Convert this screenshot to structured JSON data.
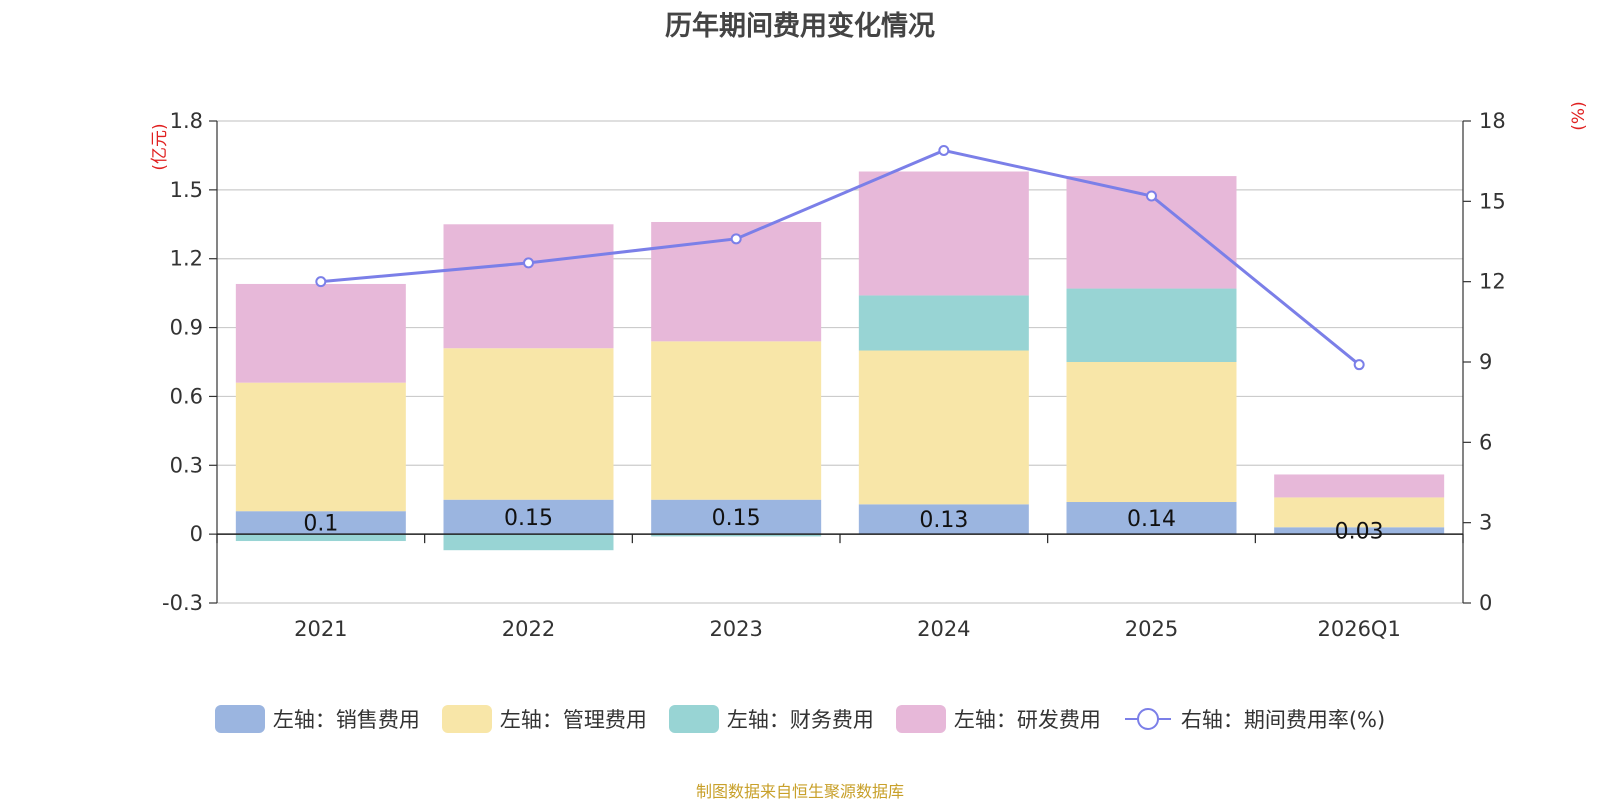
{
  "chart_data": {
    "type": "bar",
    "title": "历年期间费用变化情况",
    "categories": [
      "2021",
      "2022",
      "2023",
      "2024",
      "2025",
      "2026Q1"
    ],
    "stacked": true,
    "left_axis": {
      "unit": "(亿元)",
      "ylim": [
        -0.3,
        1.8
      ],
      "ticks": [
        "-0.3",
        "0",
        "0.3",
        "0.6",
        "0.9",
        "1.2",
        "1.5",
        "1.8"
      ]
    },
    "right_axis": {
      "unit": "(%)",
      "ylim": [
        0,
        18
      ],
      "ticks": [
        "0",
        "3",
        "6",
        "9",
        "12",
        "15",
        "18"
      ]
    },
    "series": [
      {
        "name": "左轴：销售费用",
        "axis": "left",
        "type": "bar",
        "color": "#9bb5e0",
        "values": [
          0.1,
          0.15,
          0.15,
          0.13,
          0.14,
          0.03
        ],
        "labels": [
          "0.1",
          "0.15",
          "0.15",
          "0.13",
          "0.14",
          "0.03"
        ]
      },
      {
        "name": "左轴：管理费用",
        "axis": "left",
        "type": "bar",
        "color": "#f8e6a8",
        "values": [
          0.56,
          0.66,
          0.69,
          0.67,
          0.61,
          0.13
        ]
      },
      {
        "name": "左轴：财务费用",
        "axis": "left",
        "type": "bar",
        "color": "#98d4d4",
        "values": [
          -0.03,
          -0.07,
          -0.01,
          0.24,
          0.32,
          0.0
        ]
      },
      {
        "name": "左轴：研发费用",
        "axis": "left",
        "type": "bar",
        "color": "#e7b8d9",
        "values": [
          0.43,
          0.54,
          0.52,
          0.54,
          0.49,
          0.1
        ]
      },
      {
        "name": "右轴：期间费用率(%)",
        "axis": "right",
        "type": "line",
        "color": "#7b7fe8",
        "values": [
          12.0,
          12.7,
          13.6,
          16.9,
          15.2,
          8.9
        ]
      }
    ]
  },
  "source": "制图数据来自恒生聚源数据库"
}
